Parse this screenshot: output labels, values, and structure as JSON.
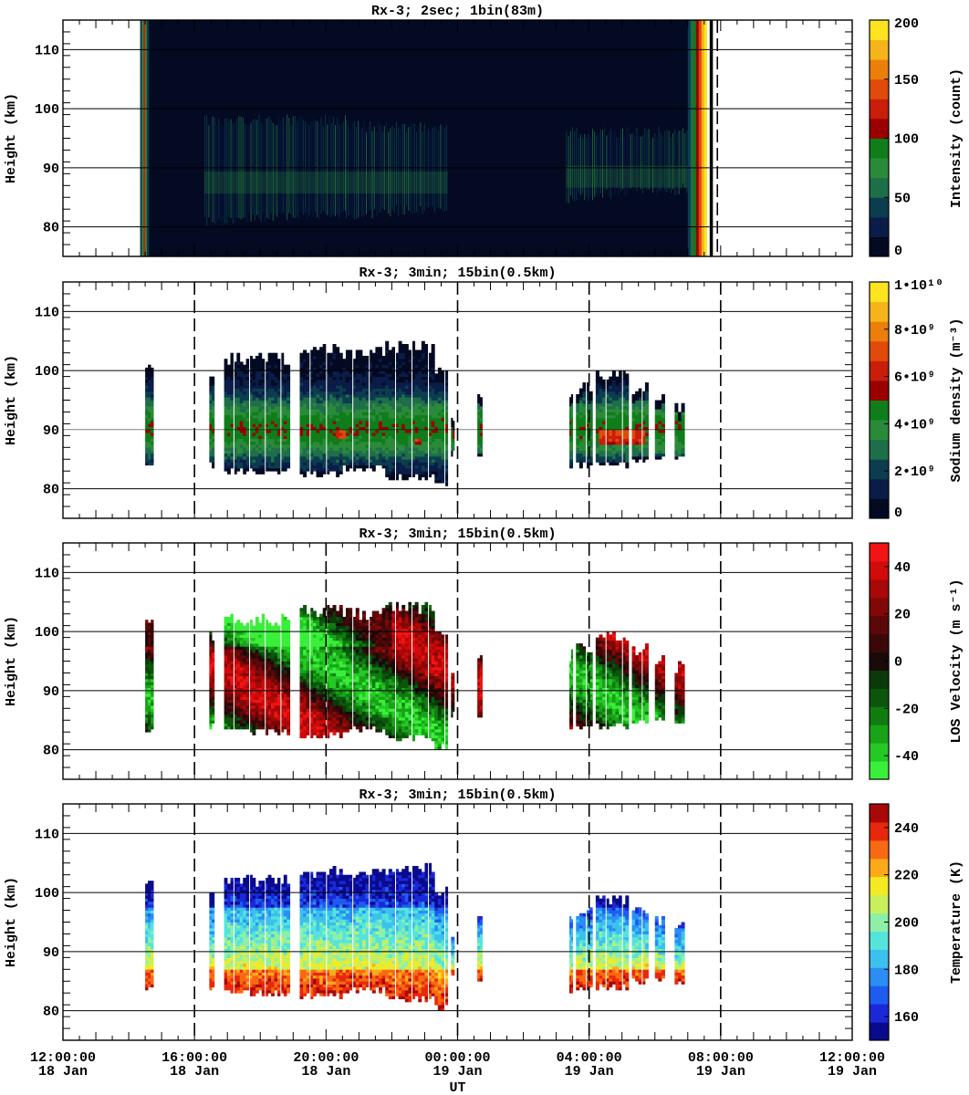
{
  "figure": {
    "xlabel": "UT",
    "x_ticks": [
      {
        "time": "12:00:00",
        "day": "18 Jan"
      },
      {
        "time": "16:00:00",
        "day": "18 Jan"
      },
      {
        "time": "20:00:00",
        "day": "18 Jan"
      },
      {
        "time": "00:00:00",
        "day": "19 Jan"
      },
      {
        "time": "04:00:00",
        "day": "19 Jan"
      },
      {
        "time": "08:00:00",
        "day": "19 Jan"
      },
      {
        "time": "12:00:00",
        "day": "19 Jan"
      }
    ]
  },
  "chart_data": [
    {
      "type": "heatmap",
      "title": "Rx-3;  2sec; 1bin(83m)",
      "xlabel": "UT",
      "ylabel": "Height (km)",
      "ylim": [
        75,
        115
      ],
      "y_ticks": [
        80,
        90,
        100,
        110
      ],
      "xlim_hours": [
        12,
        36
      ],
      "gridlines_km": [
        80,
        90,
        100,
        110
      ],
      "dashed_lines_hours": [
        31.9
      ],
      "colorbar": {
        "label": "Intensity (count)",
        "range": [
          0,
          200
        ],
        "ticks": [
          "0",
          "50",
          "100",
          "150",
          "200"
        ],
        "colors": [
          "#030a22",
          "#0a1c48",
          "#0b3d4f",
          "#1f6e4a",
          "#2a8a3a",
          "#0f7d1a",
          "#9a0000",
          "#c81e0a",
          "#e04a0a",
          "#ec7f0c",
          "#f4b41a",
          "#fde41e"
        ]
      },
      "series": [
        {
          "start_hour": 14.35,
          "end_hour": 31.45,
          "background": "#030a22"
        },
        {
          "layer": "sodium_layer",
          "segments": [
            [
              16.3,
              20.6,
              80,
              99
            ],
            [
              20.6,
              23.7,
              81,
              98
            ],
            [
              27.3,
              31.0,
              84,
              97
            ]
          ]
        },
        {
          "edge_bands": [
            [
              14.35,
              14.6
            ],
            [
              31.0,
              31.75
            ]
          ]
        }
      ]
    },
    {
      "type": "heatmap",
      "title": "Rx-3; 3min; 15bin(0.5km)",
      "xlabel": "UT",
      "ylabel": "Height (km)",
      "ylim": [
        75,
        115
      ],
      "y_ticks": [
        80,
        90,
        100,
        110
      ],
      "xlim_hours": [
        12,
        36
      ],
      "gridlines_km": [
        80,
        90,
        100,
        110
      ],
      "dashed_lines_hours": [
        16,
        24,
        28,
        32
      ],
      "colorbar": {
        "label": "Sodium density (m⁻³)",
        "range": [
          0,
          10000000000.0
        ],
        "ticks": [
          "0",
          "2•10⁹",
          "4•10⁹",
          "6•10⁹",
          "8•10⁹",
          "1•10¹⁰"
        ],
        "colors": [
          "#030a22",
          "#0a1c48",
          "#0b3d4f",
          "#1f6e4a",
          "#2a8a3a",
          "#0f7d1a",
          "#9a0000",
          "#c81e0a",
          "#e04a0a",
          "#ec7f0c",
          "#f4b41a",
          "#fde41e"
        ]
      },
      "series": [
        {
          "name": "blocks",
          "data": [
            [
              14.5,
              14.75,
              82.5,
              102
            ],
            [
              16.45,
              16.6,
              83,
              100
            ],
            [
              16.9,
              18.9,
              82,
              103
            ],
            [
              19.2,
              20.5,
              81.5,
              104.5
            ],
            [
              20.5,
              21.8,
              82.5,
              104
            ],
            [
              21.8,
              23.3,
              81,
              105
            ],
            [
              23.3,
              23.7,
              79.5,
              101
            ],
            [
              23.8,
              23.9,
              85,
              93
            ],
            [
              24.6,
              24.75,
              84.5,
              96.5
            ],
            [
              27.4,
              27.5,
              82,
              97
            ],
            [
              27.6,
              28.1,
              83,
              98
            ],
            [
              28.2,
              29.2,
              83,
              100
            ],
            [
              29.3,
              29.8,
              84,
              98
            ],
            [
              30.0,
              30.3,
              84,
              96
            ],
            [
              30.6,
              30.9,
              84,
              95
            ]
          ]
        }
      ]
    },
    {
      "type": "heatmap",
      "title": "Rx-3; 3min; 15bin(0.5km)",
      "xlabel": "UT",
      "ylabel": "Height (km)",
      "ylim": [
        75,
        115
      ],
      "y_ticks": [
        80,
        90,
        100,
        110
      ],
      "xlim_hours": [
        12,
        36
      ],
      "gridlines_km": [
        80,
        90,
        100,
        110
      ],
      "dashed_lines_hours": [
        16,
        20,
        24,
        28,
        32
      ],
      "colorbar": {
        "label": "LOS Velocity (m s⁻¹)",
        "range": [
          -50,
          50
        ],
        "ticks": [
          "-40",
          "-20",
          "0",
          "20",
          "40"
        ],
        "colors": [
          "#3aef3a",
          "#25c925",
          "#18a318",
          "#107c10",
          "#0b560b",
          "#0a3a0a",
          "#1a0a0a",
          "#3a0808",
          "#5c0808",
          "#820808",
          "#a80808",
          "#d20a0a",
          "#f01414"
        ]
      },
      "series": [
        {
          "name": "blocks",
          "data": [
            [
              14.5,
              14.75,
              82.5,
              102
            ],
            [
              16.45,
              16.6,
              83,
              100
            ],
            [
              16.9,
              18.9,
              82,
              103
            ],
            [
              19.2,
              20.5,
              81.5,
              104.5
            ],
            [
              20.5,
              21.8,
              82.5,
              104
            ],
            [
              21.8,
              23.3,
              81,
              105
            ],
            [
              23.3,
              23.7,
              79.5,
              101
            ],
            [
              23.8,
              23.9,
              85,
              93
            ],
            [
              24.6,
              24.75,
              84.5,
              96.5
            ],
            [
              27.4,
              27.5,
              82,
              97
            ],
            [
              27.6,
              28.1,
              83,
              98
            ],
            [
              28.2,
              29.2,
              83,
              100
            ],
            [
              29.3,
              29.8,
              84,
              98
            ],
            [
              30.0,
              30.3,
              84,
              96
            ],
            [
              30.6,
              30.9,
              84,
              95
            ]
          ]
        }
      ]
    },
    {
      "type": "heatmap",
      "title": "Rx-3; 3min; 15bin(0.5km)",
      "xlabel": "UT",
      "ylabel": "Height (km)",
      "ylim": [
        75,
        115
      ],
      "y_ticks": [
        80,
        90,
        100,
        110
      ],
      "xlim_hours": [
        12,
        36
      ],
      "gridlines_km": [
        80,
        90,
        100,
        110
      ],
      "dashed_lines_hours": [
        16,
        24,
        28,
        32
      ],
      "colorbar": {
        "label": "Temperature (K)",
        "range": [
          150,
          250
        ],
        "ticks": [
          "160",
          "180",
          "200",
          "220",
          "240"
        ],
        "colors": [
          "#0a0a8c",
          "#1a28d8",
          "#1e5cf0",
          "#2a8ef4",
          "#3cc0ee",
          "#54e4dc",
          "#8ef0a8",
          "#c8f05a",
          "#f4ea22",
          "#fcaa1a",
          "#f86a12",
          "#e8280c",
          "#a80808"
        ]
      },
      "series": [
        {
          "name": "blocks",
          "data": [
            [
              14.5,
              14.75,
              82.5,
              102
            ],
            [
              16.45,
              16.6,
              83,
              100
            ],
            [
              16.9,
              18.9,
              82,
              103
            ],
            [
              19.2,
              20.5,
              81.5,
              104.5
            ],
            [
              20.5,
              21.8,
              82.5,
              104
            ],
            [
              21.8,
              23.3,
              81,
              105
            ],
            [
              23.3,
              23.7,
              79.5,
              101
            ],
            [
              23.8,
              23.9,
              85,
              93
            ],
            [
              24.6,
              24.75,
              84.5,
              96.5
            ],
            [
              27.4,
              27.5,
              82,
              97
            ],
            [
              27.6,
              28.1,
              83,
              98
            ],
            [
              28.2,
              29.2,
              83,
              100
            ],
            [
              29.3,
              29.8,
              84,
              98
            ],
            [
              30.0,
              30.3,
              84,
              96
            ],
            [
              30.6,
              30.9,
              84,
              95
            ]
          ]
        }
      ]
    }
  ]
}
